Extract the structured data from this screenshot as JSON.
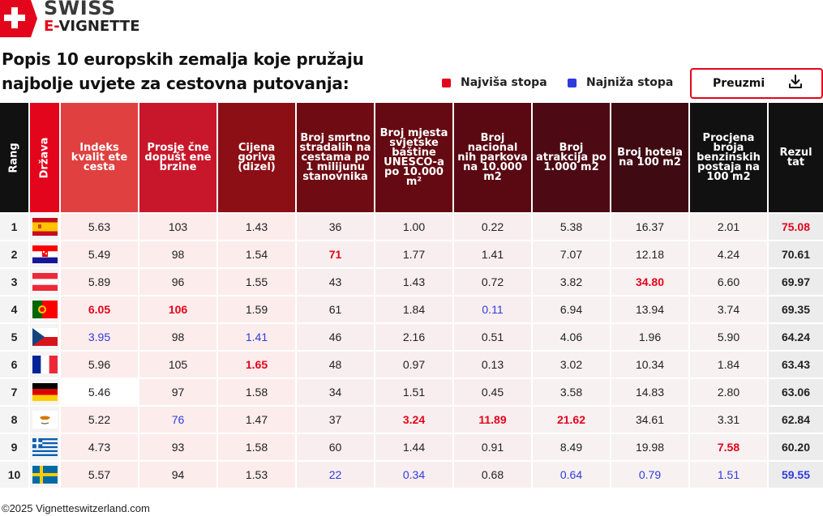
{
  "logo": {
    "line1": "SWISS",
    "line2_accent": "E-",
    "line2_rest": "VIGNETTE"
  },
  "title": "Popis 10 europskih zemalja koje pružaju najbolje uvjete za cestovna putovanja:",
  "legend": {
    "high_label": "Najviša stopa",
    "high_color": "#e3051b",
    "low_label": "Najniža stopa",
    "low_color": "#2f3bdc"
  },
  "download_button": {
    "label": "Preuzmi",
    "icon": "download-icon"
  },
  "columns": [
    {
      "label": "Rang",
      "bg": "#111111"
    },
    {
      "label": "Država",
      "bg": "#e3051b"
    },
    {
      "label": "Indeks kvalit ete cesta",
      "bg": "#e04040"
    },
    {
      "label": "Prosje čne dopušt ene brzine",
      "bg": "#c8172a"
    },
    {
      "label": "Cijena goriva (dizel)",
      "bg": "#8c0f15"
    },
    {
      "label": "Broj smrtno stradalih na cestama po 1 milijunu stanovnika",
      "bg": "#6e0b13"
    },
    {
      "label": "Broj mjesta svjetske baštine UNESCO-a po 10.000 m²",
      "bg": "#650a12"
    },
    {
      "label": "Broj nacional nih parkova na 10.000 m2",
      "bg": "#5a0812"
    },
    {
      "label": "Broj atrakcija po 1.000 m2",
      "bg": "#4d0a14"
    },
    {
      "label": "Broj hotela na 100 m2",
      "bg": "#3f0a12"
    },
    {
      "label": "Procjena broja benzinskih postaja na 100 m2",
      "bg": "#111111"
    },
    {
      "label": "Rezul tat",
      "bg": "#111111"
    }
  ],
  "rows": [
    {
      "rank": "1",
      "flag": "spain-flag",
      "values": [
        "5.63",
        "103",
        "1.43",
        "36",
        "1.00",
        "0.22",
        "5.38",
        "16.37",
        "2.01"
      ],
      "marks": [
        "",
        "",
        "",
        "",
        "",
        "",
        "",
        "",
        ""
      ],
      "result": "75.08",
      "result_mark": "hi"
    },
    {
      "rank": "2",
      "flag": "croatia-flag",
      "values": [
        "5.49",
        "98",
        "1.54",
        "71",
        "1.77",
        "1.41",
        "7.07",
        "12.18",
        "4.24"
      ],
      "marks": [
        "",
        "",
        "",
        "hi",
        "",
        "",
        "",
        "",
        ""
      ],
      "result": "70.61",
      "result_mark": ""
    },
    {
      "rank": "3",
      "flag": "austria-flag",
      "values": [
        "5.89",
        "96",
        "1.55",
        "43",
        "1.43",
        "0.72",
        "3.82",
        "34.80",
        "6.60"
      ],
      "marks": [
        "",
        "",
        "",
        "",
        "",
        "",
        "",
        "hi",
        ""
      ],
      "result": "69.97",
      "result_mark": ""
    },
    {
      "rank": "4",
      "flag": "portugal-flag",
      "values": [
        "6.05",
        "106",
        "1.59",
        "61",
        "1.84",
        "0.11",
        "6.94",
        "13.94",
        "3.74"
      ],
      "marks": [
        "hi",
        "hi",
        "",
        "",
        "",
        "lo",
        "",
        "",
        ""
      ],
      "result": "69.35",
      "result_mark": ""
    },
    {
      "rank": "5",
      "flag": "czechia-flag",
      "values": [
        "3.95",
        "98",
        "1.41",
        "46",
        "2.16",
        "0.51",
        "4.06",
        "1.96",
        "5.90"
      ],
      "marks": [
        "lo",
        "",
        "lo",
        "",
        "",
        "",
        "",
        "",
        ""
      ],
      "result": "64.24",
      "result_mark": ""
    },
    {
      "rank": "6",
      "flag": "france-flag",
      "values": [
        "5.96",
        "105",
        "1.65",
        "48",
        "0.97",
        "0.13",
        "3.02",
        "10.34",
        "1.84"
      ],
      "marks": [
        "",
        "",
        "hi",
        "",
        "",
        "",
        "",
        "",
        ""
      ],
      "result": "63.43",
      "result_mark": ""
    },
    {
      "rank": "7",
      "flag": "germany-flag",
      "values": [
        "5.46",
        "97",
        "1.58",
        "34",
        "1.51",
        "0.45",
        "3.58",
        "14.83",
        "2.80"
      ],
      "marks": [
        "",
        "",
        "",
        "",
        "",
        "",
        "",
        "",
        ""
      ],
      "result": "63.06",
      "result_mark": ""
    },
    {
      "rank": "8",
      "flag": "cyprus-flag",
      "values": [
        "5.22",
        "76",
        "1.47",
        "37",
        "3.24",
        "11.89",
        "21.62",
        "34.61",
        "3.31"
      ],
      "marks": [
        "",
        "lo",
        "",
        "",
        "hi",
        "hi",
        "hi",
        "",
        ""
      ],
      "result": "62.84",
      "result_mark": ""
    },
    {
      "rank": "9",
      "flag": "greece-flag",
      "values": [
        "4.73",
        "93",
        "1.58",
        "60",
        "1.44",
        "0.91",
        "8.49",
        "19.98",
        "7.58"
      ],
      "marks": [
        "",
        "",
        "",
        "",
        "",
        "",
        "",
        "",
        "hi"
      ],
      "result": "60.20",
      "result_mark": ""
    },
    {
      "rank": "10",
      "flag": "sweden-flag",
      "values": [
        "5.57",
        "94",
        "1.53",
        "22",
        "0.34",
        "0.68",
        "0.64",
        "0.79",
        "1.51"
      ],
      "marks": [
        "",
        "",
        "",
        "lo",
        "lo",
        "",
        "lo",
        "lo",
        "lo"
      ],
      "result": "59.55",
      "result_mark": "lo"
    }
  ],
  "footer": "©2025 Vignetteswitzerland.com"
}
